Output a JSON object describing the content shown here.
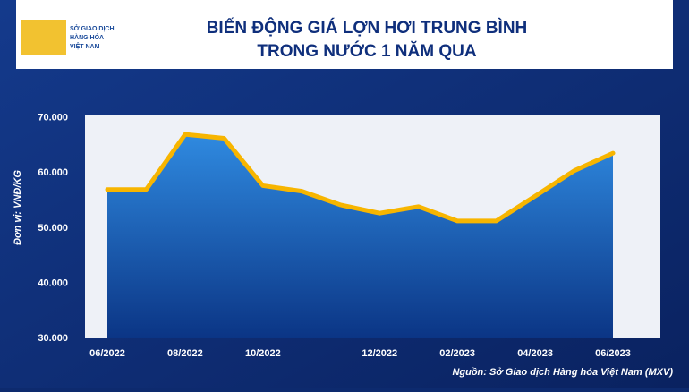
{
  "logo": {
    "lines": [
      "SỞ GIAO DỊCH",
      "HÀNG HÓA",
      "VIỆT NAM"
    ]
  },
  "chart_data": {
    "type": "area",
    "title": [
      "BIẾN ĐỘNG GIÁ LỢN HƠI TRUNG BÌNH",
      "TRONG NƯỚC 1 NĂM QUA"
    ],
    "y_label": "Đơn vị: VNĐ/KG",
    "source": "Nguồn: Sở Giao dịch Hàng hóa Việt Nam (MXV)",
    "categories": [
      "06/2022",
      null,
      "08/2022",
      null,
      "10/2022",
      null,
      null,
      "12/2022",
      null,
      "02/2023",
      null,
      "04/2023",
      null,
      "06/2023"
    ],
    "values": [
      57000,
      57000,
      67000,
      66300,
      57700,
      56700,
      54200,
      52700,
      53900,
      51300,
      51300,
      55800,
      60400,
      63600
    ],
    "color": "#f7b500",
    "ylim": [
      30000,
      70600
    ],
    "yticks": [
      {
        "value": 30000,
        "label": "30.000"
      },
      {
        "value": 40000,
        "label": "40.000"
      },
      {
        "value": 50000,
        "label": "50.000"
      },
      {
        "value": 60000,
        "label": "60.000"
      },
      {
        "value": 70000,
        "label": "70.000"
      }
    ]
  }
}
